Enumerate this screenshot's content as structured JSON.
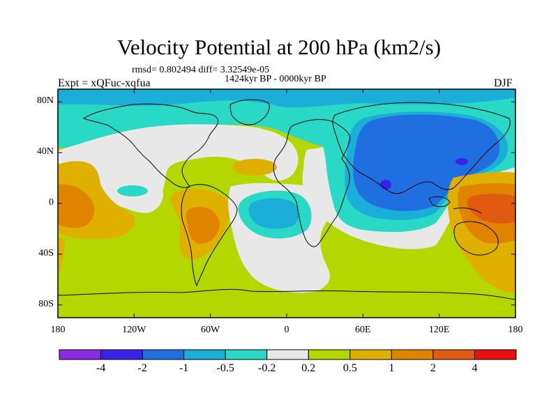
{
  "title": "Velocity Potential at 200 hPa (km2/s)",
  "stats_line": "rmsd= 0.802494 diff= 3.32549e-05",
  "period": "1424kyr BP - 0000kyr BP",
  "experiment": "Expt = xQFuc-xqfua",
  "season": "DJF",
  "map": {
    "projection": "cylindrical-equidistant",
    "lon_range": [
      -180,
      180
    ],
    "lat_range": [
      -90,
      90
    ],
    "background_color": "#b4d700",
    "y_ticks": [
      {
        "lat": 80,
        "label": "80N"
      },
      {
        "lat": 40,
        "label": "40N"
      },
      {
        "lat": 0,
        "label": "0"
      },
      {
        "lat": -40,
        "label": "40S"
      },
      {
        "lat": -80,
        "label": "80S"
      }
    ],
    "x_ticks": [
      {
        "lon": -180,
        "label": "180"
      },
      {
        "lon": -120,
        "label": "120W"
      },
      {
        "lon": -60,
        "label": "60W"
      },
      {
        "lon": 0,
        "label": "0"
      },
      {
        "lon": 60,
        "label": "60E"
      },
      {
        "lon": 120,
        "label": "120E"
      },
      {
        "lon": 180,
        "label": "180"
      }
    ]
  },
  "colorbar": {
    "colors": [
      "#8a2be2",
      "#3b22e8",
      "#1f6fe0",
      "#1aaed8",
      "#2ad8c6",
      "#e8e8e8",
      "#b4d700",
      "#e0b000",
      "#e08400",
      "#e05a10",
      "#e81010"
    ],
    "labels": [
      "-4",
      "-2",
      "-1",
      "-0.5",
      "-0.2",
      "0.2",
      "0.5",
      "1",
      "2",
      "4"
    ]
  }
}
